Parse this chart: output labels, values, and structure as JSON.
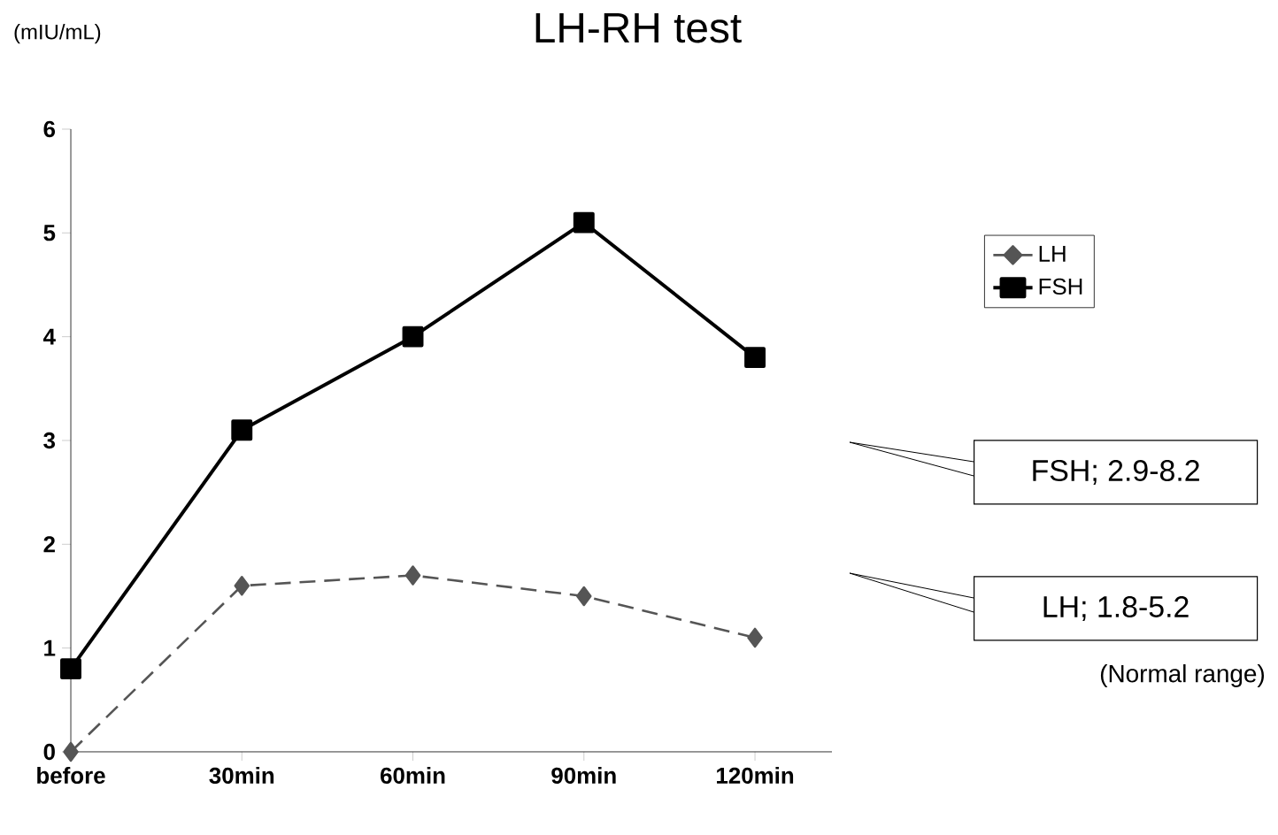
{
  "chart_data": {
    "type": "line",
    "title": "LH-RH test",
    "ylabel": "(mIU/mL)",
    "categories": [
      "before",
      "30min",
      "60min",
      "90min",
      "120min"
    ],
    "series": [
      {
        "name": "LH",
        "color": "#555555",
        "values": [
          0,
          1.6,
          1.7,
          1.5,
          1.1
        ],
        "marker": "diamond",
        "line_style": "dashed"
      },
      {
        "name": "FSH",
        "color": "#000000",
        "values": [
          0.8,
          3.1,
          4.0,
          5.1,
          3.8
        ],
        "marker": "square",
        "line_style": "solid"
      }
    ],
    "ylim": [
      0,
      6
    ],
    "yticks": [
      0,
      1,
      2,
      3,
      4,
      5,
      6
    ],
    "grid": false,
    "legend": "right",
    "annotations": [
      "FSH; 2.9-8.2",
      "LH; 1.8-5.2",
      "(Normal range)"
    ]
  }
}
